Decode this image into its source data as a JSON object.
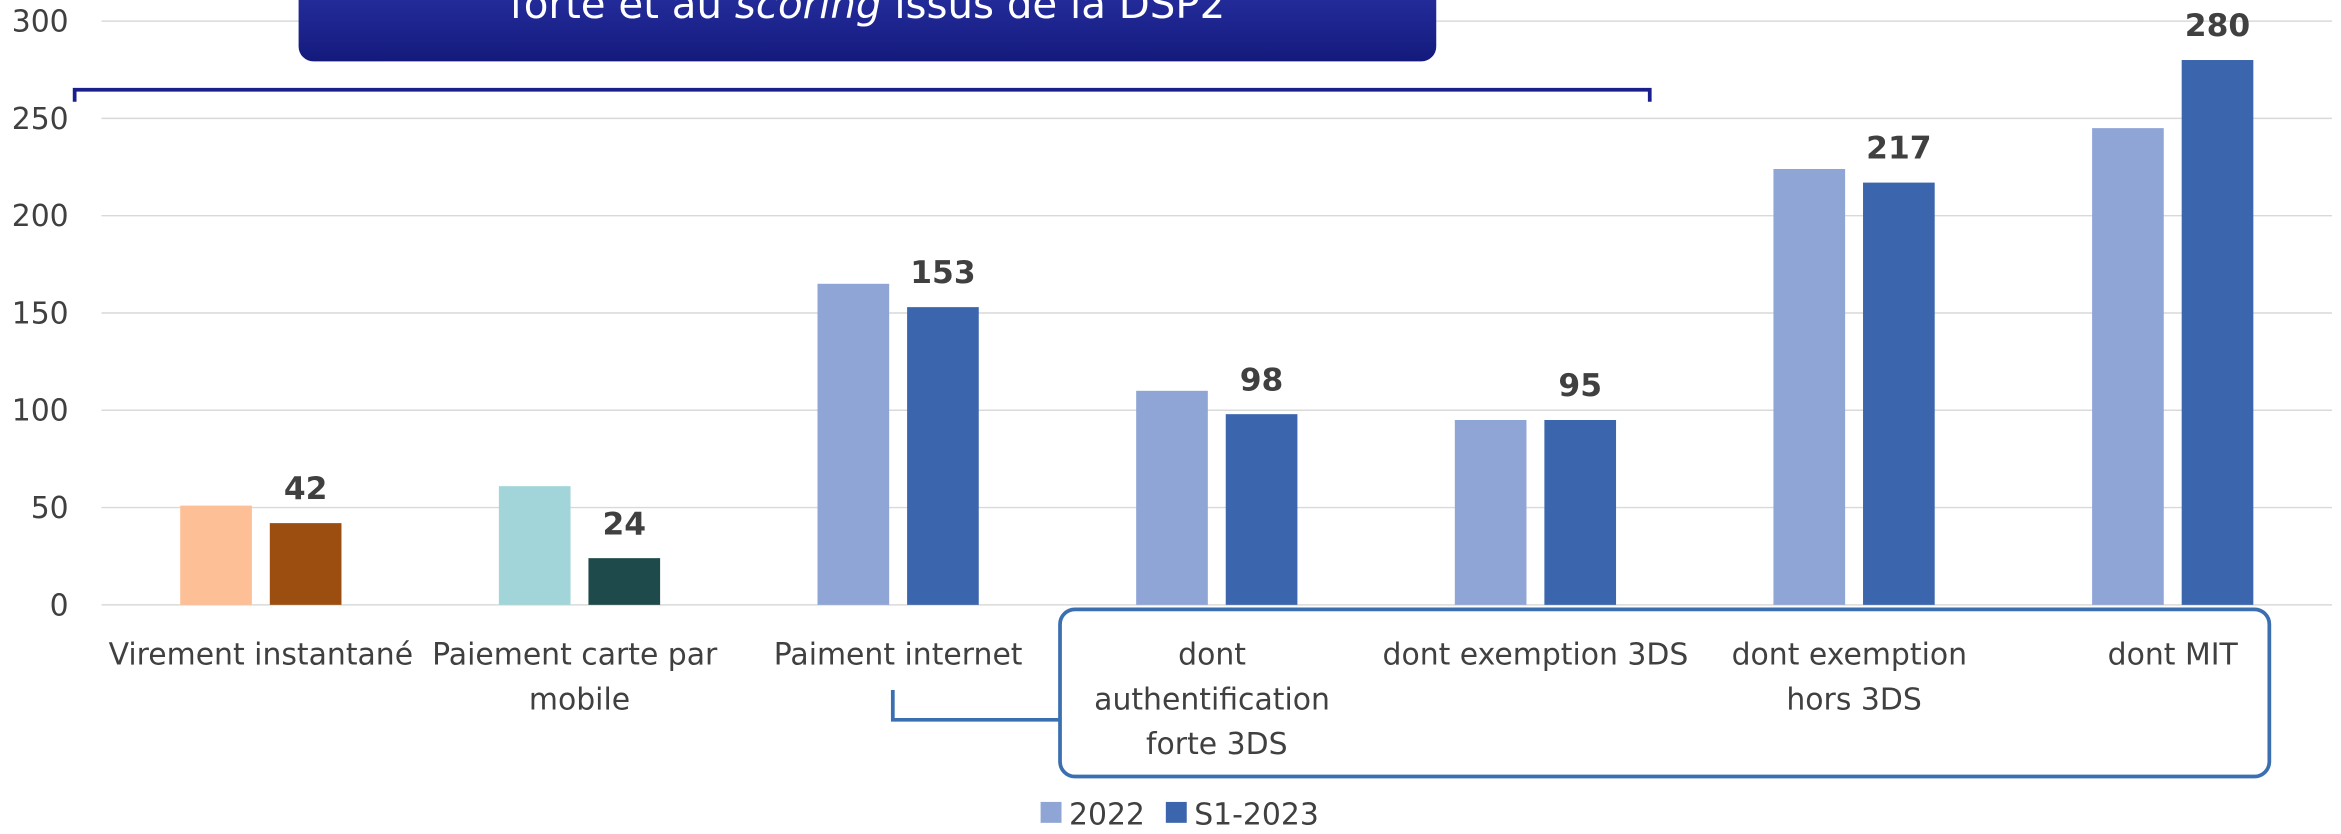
{
  "header": {
    "banner_parts": [
      "forte et au ",
      "scoring",
      " issus de la DSP2"
    ]
  },
  "chart_data": {
    "type": "bar",
    "categories": [
      "Virement instantané",
      "Paiement carte par mobile",
      "Paiment internet",
      "dont authentification forte 3DS",
      "dont exemption 3DS",
      "dont exemption hors 3DS",
      "dont MIT"
    ],
    "series": [
      {
        "name": "2022",
        "color": "#8fa5d6",
        "colors": [
          "#fdbf96",
          "#a2d5d9",
          "#8fa5d6",
          "#8fa5d6",
          "#8fa5d6",
          "#8fa5d6",
          "#8fa5d6"
        ],
        "values": [
          51,
          61,
          165,
          110,
          95,
          224,
          245
        ],
        "labels": false
      },
      {
        "name": "S1-2023",
        "color": "#3b65ad",
        "colors": [
          "#9b4e10",
          "#1f4a4c",
          "#3b65ad",
          "#3b65ad",
          "#3b65ad",
          "#3b65ad",
          "#3b65ad"
        ],
        "values": [
          42,
          24,
          153,
          98,
          95,
          217,
          280
        ],
        "labels": true
      }
    ],
    "ylim": [
      0,
      300
    ],
    "yticks": [
      0,
      50,
      100,
      150,
      200,
      250,
      300
    ],
    "grid": true,
    "legend": "bottom"
  }
}
